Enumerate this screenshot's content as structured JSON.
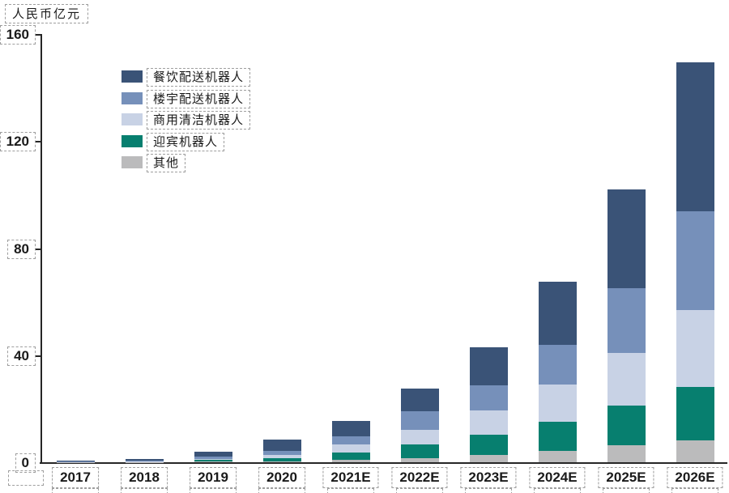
{
  "chart_data": {
    "type": "bar",
    "subtype": "stacked",
    "title": "",
    "unit_label": "人民币亿元",
    "xlabel": "",
    "ylabel": "人民币亿元",
    "categories": [
      "2017",
      "2018",
      "2019",
      "2020",
      "2021E",
      "2022E",
      "2023E",
      "2024E",
      "2025E",
      "2026E"
    ],
    "series": [
      {
        "name": "其他",
        "color": "#bbbbbc",
        "values": [
          0.1,
          0.05,
          0.2,
          0.3,
          1.0,
          1.5,
          2.7,
          4.2,
          6.5,
          8.1
        ]
      },
      {
        "name": "迎宾机器人",
        "color": "#077f6f",
        "values": [
          0.1,
          0.15,
          0.6,
          1.2,
          2.5,
          5.2,
          7.7,
          10.8,
          14.6,
          19.9
        ]
      },
      {
        "name": "商用清洁机器人",
        "color": "#c8d2e5",
        "values": [
          0.05,
          0.2,
          0.5,
          1.3,
          3.2,
          5.5,
          9.0,
          13.9,
          19.6,
          28.9
        ]
      },
      {
        "name": "楼宇配送机器人",
        "color": "#7690ba",
        "values": [
          0.1,
          0.3,
          0.7,
          1.5,
          3.0,
          6.8,
          9.4,
          15.1,
          24.3,
          36.8
        ]
      },
      {
        "name": "餐饮配送机器人",
        "color": "#3a5377",
        "values": [
          0.15,
          0.6,
          2.0,
          4.2,
          5.8,
          8.5,
          14.0,
          23.3,
          36.8,
          55.7
        ]
      }
    ],
    "totals": [
      0.5,
      1.3,
      4.0,
      8.5,
      15.5,
      27.5,
      42.8,
      67.3,
      101.8,
      149.4
    ],
    "legend_order_top_to_bottom": [
      "餐饮配送机器人",
      "楼宇配送机器人",
      "商用清洁机器人",
      "迎宾机器人",
      "其他"
    ],
    "legend_position": "upper-left-inside",
    "y_axis": {
      "ticks": [
        0,
        40,
        80,
        120,
        160
      ],
      "min": 0,
      "max": 160
    },
    "grid": false,
    "colors": {
      "axis": "#262626",
      "annotation_dash": "#9e9e9e",
      "text": "#1a1a1a"
    }
  }
}
